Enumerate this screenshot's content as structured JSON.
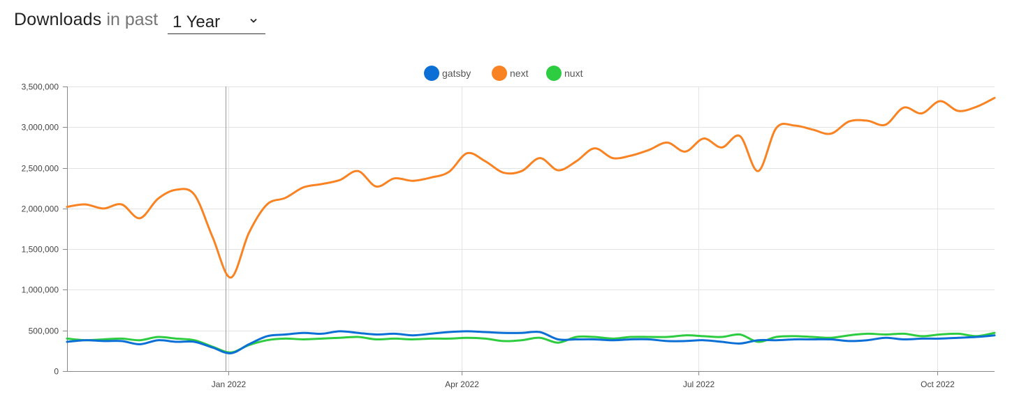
{
  "header": {
    "title": "Downloads",
    "subtitle": "in past",
    "period": {
      "selected": "1 Year"
    }
  },
  "colors": {
    "gatsby": "#0b6fd6",
    "next": "#f98323",
    "nuxt": "#2ecc40",
    "grid": "#e3e3e3",
    "axis": "#888888",
    "hover_line": "#999999"
  },
  "chart_data": {
    "type": "line",
    "title": "",
    "xlabel": "",
    "ylabel": "",
    "ylim": [
      0,
      3500000
    ],
    "yticks": [
      0,
      500000,
      1000000,
      1500000,
      2000000,
      2500000,
      3000000,
      3500000
    ],
    "ytick_labels": [
      "0",
      "500,000",
      "1,000,000",
      "1,500,000",
      "2,000,000",
      "2,500,000",
      "3,000,000",
      "3,500,000"
    ],
    "xlim": [
      "2021-10-31",
      "2022-10-23"
    ],
    "xticks": [
      "2022-01-01",
      "2022-04-01",
      "2022-07-01",
      "2022-10-01"
    ],
    "xtick_labels": [
      "Jan 2022",
      "Apr 2022",
      "Jul 2022",
      "Oct 2022"
    ],
    "hover_date": "2021-12-31",
    "grid": true,
    "legend_position": "top-center",
    "x": [
      "2021-10-31",
      "2021-11-07",
      "2021-11-14",
      "2021-11-21",
      "2021-11-28",
      "2021-12-05",
      "2021-12-12",
      "2021-12-19",
      "2021-12-26",
      "2022-01-02",
      "2022-01-09",
      "2022-01-16",
      "2022-01-23",
      "2022-01-30",
      "2022-02-06",
      "2022-02-13",
      "2022-02-20",
      "2022-02-27",
      "2022-03-06",
      "2022-03-13",
      "2022-03-20",
      "2022-03-27",
      "2022-04-03",
      "2022-04-10",
      "2022-04-17",
      "2022-04-24",
      "2022-05-01",
      "2022-05-08",
      "2022-05-15",
      "2022-05-22",
      "2022-05-29",
      "2022-06-05",
      "2022-06-12",
      "2022-06-19",
      "2022-06-26",
      "2022-07-03",
      "2022-07-10",
      "2022-07-17",
      "2022-07-24",
      "2022-07-31",
      "2022-08-07",
      "2022-08-14",
      "2022-08-21",
      "2022-08-28",
      "2022-09-04",
      "2022-09-11",
      "2022-09-18",
      "2022-09-25",
      "2022-10-02",
      "2022-10-09",
      "2022-10-16",
      "2022-10-23"
    ],
    "series": [
      {
        "name": "gatsby",
        "values": [
          360000,
          380000,
          370000,
          370000,
          330000,
          380000,
          360000,
          360000,
          290000,
          220000,
          330000,
          430000,
          450000,
          470000,
          460000,
          490000,
          470000,
          450000,
          460000,
          440000,
          460000,
          480000,
          490000,
          480000,
          470000,
          470000,
          480000,
          390000,
          390000,
          390000,
          380000,
          390000,
          390000,
          370000,
          370000,
          380000,
          360000,
          340000,
          380000,
          380000,
          390000,
          390000,
          390000,
          370000,
          380000,
          410000,
          390000,
          400000,
          400000,
          410000,
          420000,
          440000
        ]
      },
      {
        "name": "next",
        "values": [
          2020000,
          2050000,
          2000000,
          2050000,
          1880000,
          2120000,
          2230000,
          2170000,
          1650000,
          1150000,
          1700000,
          2050000,
          2130000,
          2260000,
          2300000,
          2350000,
          2460000,
          2270000,
          2370000,
          2340000,
          2380000,
          2450000,
          2680000,
          2580000,
          2440000,
          2460000,
          2620000,
          2470000,
          2580000,
          2740000,
          2620000,
          2650000,
          2720000,
          2810000,
          2700000,
          2860000,
          2750000,
          2890000,
          2460000,
          2990000,
          3020000,
          2970000,
          2920000,
          3070000,
          3080000,
          3030000,
          3240000,
          3170000,
          3320000,
          3200000,
          3250000,
          3360000
        ]
      },
      {
        "name": "nuxt",
        "values": [
          400000,
          380000,
          390000,
          400000,
          380000,
          420000,
          400000,
          380000,
          300000,
          230000,
          320000,
          380000,
          400000,
          390000,
          400000,
          410000,
          420000,
          390000,
          400000,
          390000,
          400000,
          400000,
          410000,
          400000,
          370000,
          380000,
          410000,
          350000,
          420000,
          420000,
          400000,
          420000,
          420000,
          420000,
          440000,
          430000,
          420000,
          450000,
          360000,
          420000,
          430000,
          420000,
          410000,
          440000,
          460000,
          450000,
          460000,
          430000,
          450000,
          460000,
          430000,
          470000
        ]
      }
    ]
  }
}
